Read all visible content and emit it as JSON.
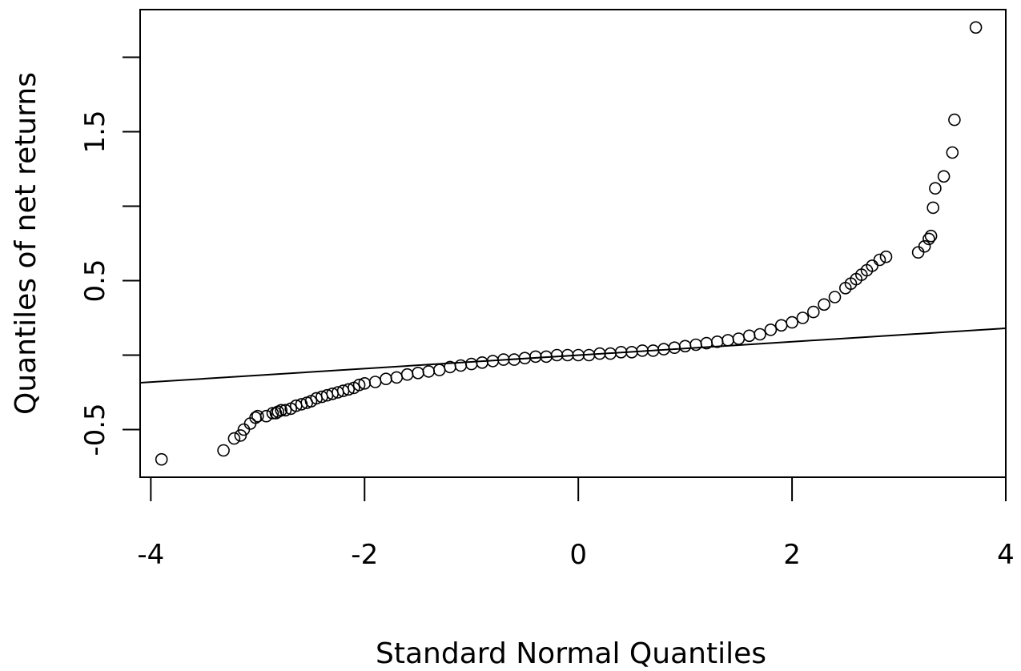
{
  "chart_data": {
    "type": "scatter",
    "title": "",
    "xlabel": "Standard Normal Quantiles",
    "ylabel": "Quantiles of net returns",
    "xlim": [
      -4.1,
      4
    ],
    "ylim": [
      -0.82,
      2.32
    ],
    "xticks": [
      -4,
      -2,
      0,
      2,
      4
    ],
    "xtick_labels": [
      "-4",
      "-2",
      "0",
      "2",
      "4"
    ],
    "yticks": [
      -0.5,
      0,
      0.5,
      1.0,
      1.5,
      2.0
    ],
    "ytick_labels": [
      "-0.5",
      "",
      "0.5",
      "",
      "1.5",
      ""
    ],
    "grid": false,
    "legend": "none",
    "marker": "open-circle",
    "reference_line": {
      "x": [
        -4.2,
        4.0
      ],
      "y": [
        -0.19,
        0.18
      ]
    },
    "series": [
      {
        "points": [
          [
            -3.9,
            -0.7
          ],
          [
            -3.32,
            -0.64
          ],
          [
            -3.22,
            -0.56
          ],
          [
            -3.16,
            -0.54
          ],
          [
            -3.13,
            -0.5
          ],
          [
            -3.07,
            -0.46
          ],
          [
            -3.02,
            -0.42
          ],
          [
            -3.0,
            -0.41
          ],
          [
            -2.92,
            -0.41
          ],
          [
            -2.86,
            -0.39
          ],
          [
            -2.83,
            -0.39
          ],
          [
            -2.81,
            -0.38
          ],
          [
            -2.78,
            -0.37
          ],
          [
            -2.74,
            -0.37
          ],
          [
            -2.69,
            -0.36
          ],
          [
            -2.64,
            -0.34
          ],
          [
            -2.59,
            -0.33
          ],
          [
            -2.54,
            -0.32
          ],
          [
            -2.5,
            -0.31
          ],
          [
            -2.45,
            -0.29
          ],
          [
            -2.4,
            -0.28
          ],
          [
            -2.35,
            -0.27
          ],
          [
            -2.3,
            -0.26
          ],
          [
            -2.25,
            -0.25
          ],
          [
            -2.2,
            -0.24
          ],
          [
            -2.15,
            -0.23
          ],
          [
            -2.1,
            -0.22
          ],
          [
            -2.05,
            -0.2
          ],
          [
            -2.0,
            -0.19
          ],
          [
            -1.9,
            -0.18
          ],
          [
            -1.8,
            -0.16
          ],
          [
            -1.7,
            -0.15
          ],
          [
            -1.6,
            -0.13
          ],
          [
            -1.5,
            -0.12
          ],
          [
            -1.4,
            -0.11
          ],
          [
            -1.3,
            -0.1
          ],
          [
            -1.2,
            -0.08
          ],
          [
            -1.1,
            -0.07
          ],
          [
            -1.0,
            -0.06
          ],
          [
            -0.9,
            -0.05
          ],
          [
            -0.8,
            -0.04
          ],
          [
            -0.7,
            -0.03
          ],
          [
            -0.6,
            -0.03
          ],
          [
            -0.5,
            -0.02
          ],
          [
            -0.4,
            -0.01
          ],
          [
            -0.3,
            -0.01
          ],
          [
            -0.2,
            0.0
          ],
          [
            -0.1,
            0.0
          ],
          [
            0.0,
            0.0
          ],
          [
            0.1,
            0.0
          ],
          [
            0.2,
            0.01
          ],
          [
            0.3,
            0.01
          ],
          [
            0.4,
            0.02
          ],
          [
            0.5,
            0.02
          ],
          [
            0.6,
            0.03
          ],
          [
            0.7,
            0.03
          ],
          [
            0.8,
            0.04
          ],
          [
            0.9,
            0.05
          ],
          [
            1.0,
            0.06
          ],
          [
            1.1,
            0.07
          ],
          [
            1.2,
            0.08
          ],
          [
            1.3,
            0.09
          ],
          [
            1.4,
            0.1
          ],
          [
            1.5,
            0.11
          ],
          [
            1.6,
            0.13
          ],
          [
            1.7,
            0.14
          ],
          [
            1.8,
            0.17
          ],
          [
            1.9,
            0.2
          ],
          [
            2.0,
            0.22
          ],
          [
            2.1,
            0.25
          ],
          [
            2.2,
            0.29
          ],
          [
            2.3,
            0.34
          ],
          [
            2.4,
            0.39
          ],
          [
            2.5,
            0.45
          ],
          [
            2.55,
            0.48
          ],
          [
            2.6,
            0.51
          ],
          [
            2.65,
            0.54
          ],
          [
            2.7,
            0.57
          ],
          [
            2.75,
            0.6
          ],
          [
            2.82,
            0.64
          ],
          [
            2.88,
            0.66
          ],
          [
            3.18,
            0.69
          ],
          [
            3.24,
            0.73
          ],
          [
            3.28,
            0.78
          ],
          [
            3.3,
            0.8
          ],
          [
            3.32,
            0.99
          ],
          [
            3.34,
            1.12
          ],
          [
            3.42,
            1.2
          ],
          [
            3.5,
            1.36
          ],
          [
            3.52,
            1.58
          ],
          [
            3.72,
            2.2
          ]
        ]
      }
    ]
  }
}
